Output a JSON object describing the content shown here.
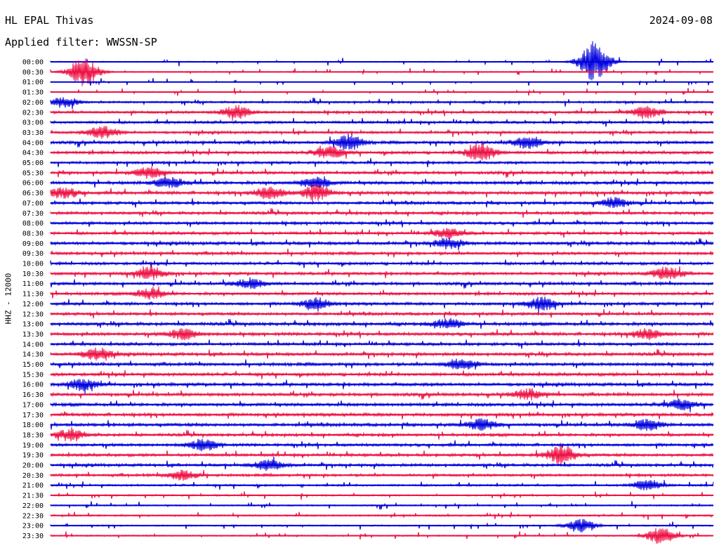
{
  "header": {
    "title": "HL EPAL Thivas",
    "date": "2024-09-08",
    "filter": "Applied filter: WWSSN-SP"
  },
  "chart_data": {
    "type": "line",
    "title": "HL EPAL Thivas",
    "ylabel": "HHZ - 12000",
    "xlabel": "",
    "colors": [
      "#0000dd",
      "#ee1144"
    ],
    "categories": [
      "00:00",
      "00:30",
      "01:00",
      "01:30",
      "02:00",
      "02:30",
      "03:00",
      "03:30",
      "04:00",
      "04:30",
      "05:00",
      "05:30",
      "06:00",
      "06:30",
      "07:00",
      "07:30",
      "08:00",
      "08:30",
      "09:00",
      "09:30",
      "10:00",
      "10:30",
      "11:00",
      "11:30",
      "12:00",
      "12:30",
      "13:00",
      "13:30",
      "14:00",
      "14:30",
      "15:00",
      "15:30",
      "16:00",
      "16:30",
      "17:00",
      "17:30",
      "18:00",
      "18:30",
      "19:00",
      "19:30",
      "20:00",
      "20:30",
      "21:00",
      "21:30",
      "22:00",
      "22:30",
      "23:00",
      "23:30"
    ],
    "noise_level": [
      0.2,
      0.2,
      0.1,
      0.2,
      0.35,
      0.45,
      0.45,
      0.45,
      0.5,
      0.5,
      0.45,
      0.5,
      0.55,
      0.55,
      0.5,
      0.5,
      0.5,
      0.5,
      0.55,
      0.5,
      0.5,
      0.5,
      0.5,
      0.5,
      0.5,
      0.5,
      0.55,
      0.55,
      0.5,
      0.55,
      0.55,
      0.55,
      0.55,
      0.55,
      0.55,
      0.55,
      0.55,
      0.5,
      0.5,
      0.5,
      0.5,
      0.45,
      0.35,
      0.3,
      0.25,
      0.3,
      0.25,
      0.25
    ],
    "events": [
      {
        "row": 0,
        "t": 0.82,
        "amp": 4.5
      },
      {
        "row": 1,
        "t": 0.05,
        "amp": 3.5
      },
      {
        "row": 4,
        "t": 0.02,
        "amp": 1.2
      },
      {
        "row": 5,
        "t": 0.28,
        "amp": 1.5
      },
      {
        "row": 5,
        "t": 0.9,
        "amp": 1.5
      },
      {
        "row": 7,
        "t": 0.08,
        "amp": 1.5
      },
      {
        "row": 8,
        "t": 0.45,
        "amp": 1.8
      },
      {
        "row": 8,
        "t": 0.72,
        "amp": 1.5
      },
      {
        "row": 9,
        "t": 0.65,
        "amp": 2.2
      },
      {
        "row": 9,
        "t": 0.42,
        "amp": 1.5
      },
      {
        "row": 11,
        "t": 0.15,
        "amp": 1.3
      },
      {
        "row": 12,
        "t": 0.18,
        "amp": 1.2
      },
      {
        "row": 12,
        "t": 0.4,
        "amp": 1.3
      },
      {
        "row": 13,
        "t": 0.02,
        "amp": 1.2
      },
      {
        "row": 13,
        "t": 0.33,
        "amp": 1.5
      },
      {
        "row": 13,
        "t": 0.4,
        "amp": 1.8
      },
      {
        "row": 14,
        "t": 0.85,
        "amp": 1.2
      },
      {
        "row": 17,
        "t": 0.6,
        "amp": 1.1
      },
      {
        "row": 18,
        "t": 0.6,
        "amp": 1.2
      },
      {
        "row": 21,
        "t": 0.15,
        "amp": 1.5
      },
      {
        "row": 21,
        "t": 0.93,
        "amp": 1.5
      },
      {
        "row": 22,
        "t": 0.3,
        "amp": 1.2
      },
      {
        "row": 23,
        "t": 0.15,
        "amp": 1.2
      },
      {
        "row": 24,
        "t": 0.4,
        "amp": 1.3
      },
      {
        "row": 24,
        "t": 0.74,
        "amp": 1.5
      },
      {
        "row": 26,
        "t": 0.6,
        "amp": 1.2
      },
      {
        "row": 27,
        "t": 0.2,
        "amp": 1.3
      },
      {
        "row": 27,
        "t": 0.9,
        "amp": 1.3
      },
      {
        "row": 29,
        "t": 0.07,
        "amp": 1.5
      },
      {
        "row": 30,
        "t": 0.62,
        "amp": 1.3
      },
      {
        "row": 32,
        "t": 0.05,
        "amp": 1.3
      },
      {
        "row": 33,
        "t": 0.72,
        "amp": 1.2
      },
      {
        "row": 34,
        "t": 0.95,
        "amp": 1.2
      },
      {
        "row": 36,
        "t": 0.65,
        "amp": 1.3
      },
      {
        "row": 36,
        "t": 0.9,
        "amp": 1.3
      },
      {
        "row": 37,
        "t": 0.03,
        "amp": 1.3
      },
      {
        "row": 38,
        "t": 0.23,
        "amp": 1.3
      },
      {
        "row": 39,
        "t": 0.77,
        "amp": 2.2
      },
      {
        "row": 40,
        "t": 0.33,
        "amp": 1.3
      },
      {
        "row": 41,
        "t": 0.2,
        "amp": 1.2
      },
      {
        "row": 42,
        "t": 0.9,
        "amp": 1.2
      },
      {
        "row": 46,
        "t": 0.8,
        "amp": 1.5
      },
      {
        "row": 47,
        "t": 0.92,
        "amp": 2.0
      }
    ],
    "grid": false
  }
}
